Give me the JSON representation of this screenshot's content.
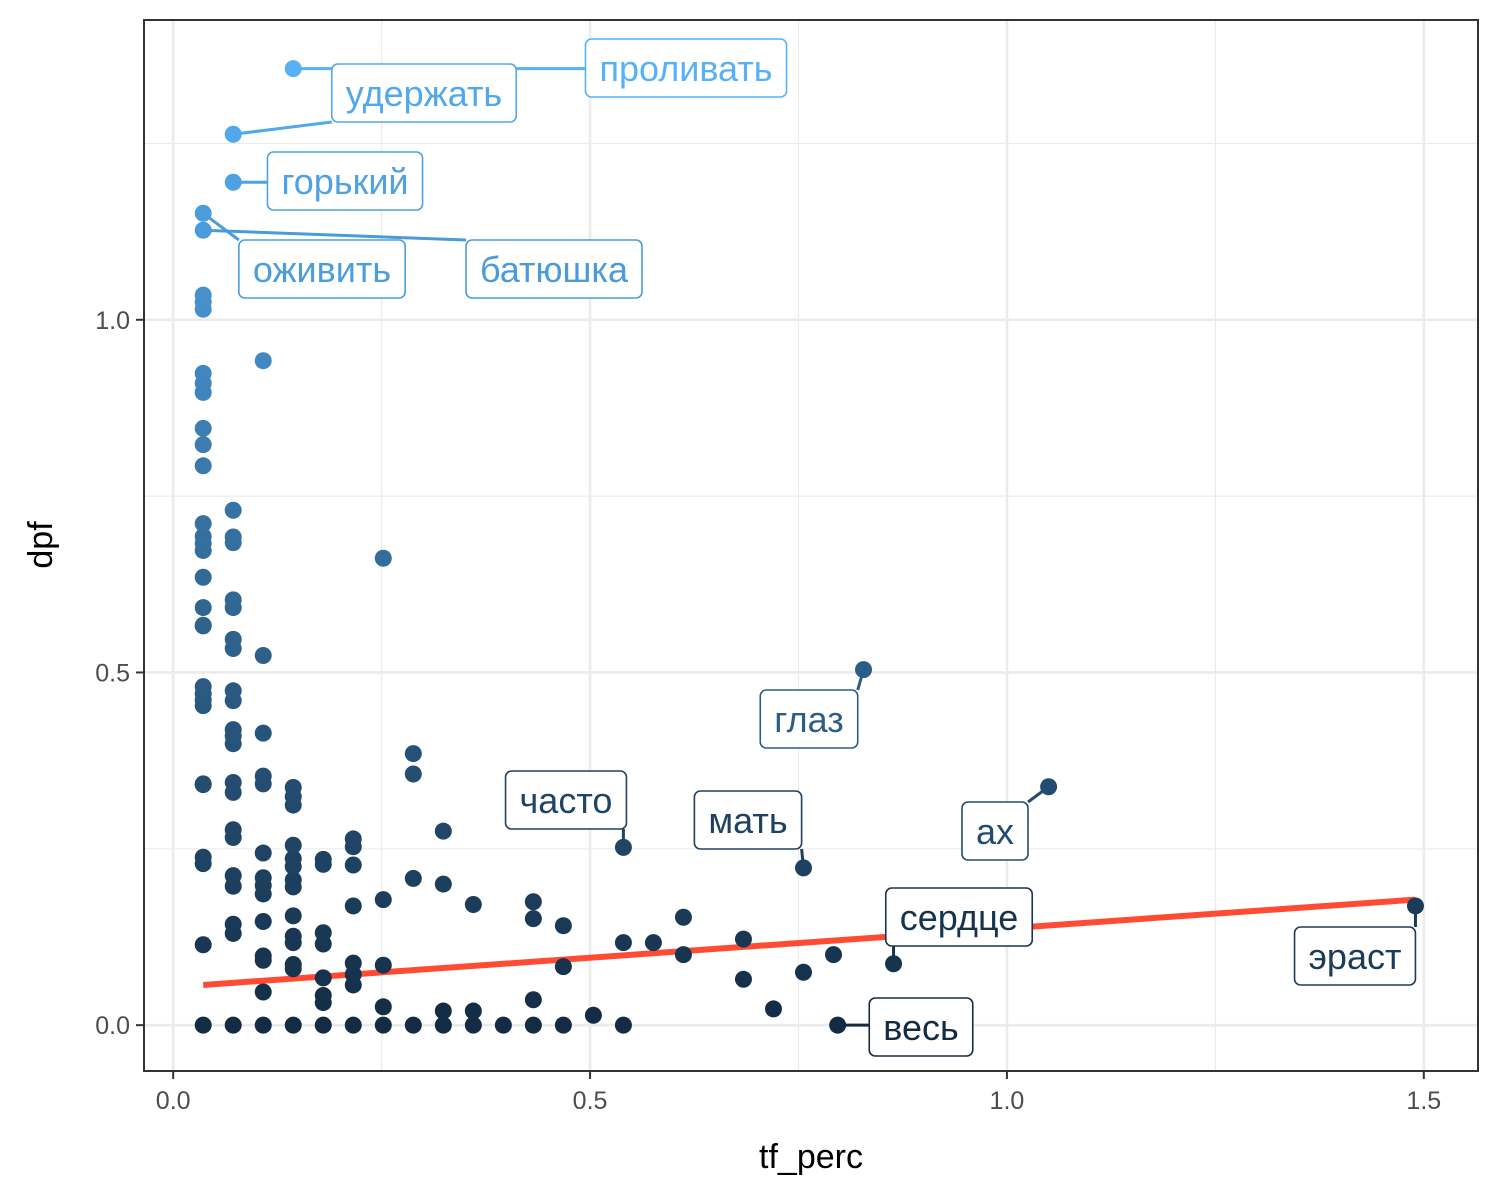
{
  "chart_data": {
    "type": "scatter",
    "xlabel": "tf_perc",
    "ylabel": "dpf",
    "xlim": [
      -0.035,
      1.565
    ],
    "ylim": [
      -0.065,
      1.425
    ],
    "x_ticks": [
      0.0,
      0.5,
      1.0,
      1.5
    ],
    "x_tick_labels": [
      "0.0",
      "0.5",
      "1.0",
      "1.5"
    ],
    "y_ticks": [
      0.0,
      0.5,
      1.0
    ],
    "y_tick_labels": [
      "0.0",
      "0.5",
      "1.0"
    ],
    "grid": true,
    "legend": "none",
    "color_low": "#132B43",
    "color_high": "#56B1F7",
    "trend_color": "#FF4B33",
    "trend_line": {
      "x": [
        0.036,
        1.49
      ],
      "y": [
        0.057,
        0.178
      ]
    },
    "points": [
      {
        "x": 0.036,
        "y": 0.0
      },
      {
        "x": 0.072,
        "y": 0.0
      },
      {
        "x": 0.108,
        "y": 0.0
      },
      {
        "x": 0.144,
        "y": 0.0
      },
      {
        "x": 0.18,
        "y": 0.0
      },
      {
        "x": 0.216,
        "y": 0.0
      },
      {
        "x": 0.252,
        "y": 0.0
      },
      {
        "x": 0.288,
        "y": 0.0
      },
      {
        "x": 0.324,
        "y": 0.0
      },
      {
        "x": 0.36,
        "y": 0.0
      },
      {
        "x": 0.396,
        "y": 0.0
      },
      {
        "x": 0.432,
        "y": 0.0
      },
      {
        "x": 0.468,
        "y": 0.0
      },
      {
        "x": 0.54,
        "y": 0.0
      },
      {
        "x": 0.797,
        "y": 0.0
      },
      {
        "x": 0.036,
        "y": 0.114
      },
      {
        "x": 0.036,
        "y": 0.229
      },
      {
        "x": 0.036,
        "y": 0.238
      },
      {
        "x": 0.036,
        "y": 0.341
      },
      {
        "x": 0.036,
        "y": 0.342
      },
      {
        "x": 0.036,
        "y": 0.453
      },
      {
        "x": 0.036,
        "y": 0.461
      },
      {
        "x": 0.036,
        "y": 0.47
      },
      {
        "x": 0.036,
        "y": 0.48
      },
      {
        "x": 0.036,
        "y": 0.566
      },
      {
        "x": 0.036,
        "y": 0.567
      },
      {
        "x": 0.036,
        "y": 0.592
      },
      {
        "x": 0.036,
        "y": 0.635
      },
      {
        "x": 0.036,
        "y": 0.673
      },
      {
        "x": 0.036,
        "y": 0.683
      },
      {
        "x": 0.036,
        "y": 0.693
      },
      {
        "x": 0.036,
        "y": 0.711
      },
      {
        "x": 0.036,
        "y": 0.793
      },
      {
        "x": 0.036,
        "y": 0.823
      },
      {
        "x": 0.036,
        "y": 0.846
      },
      {
        "x": 0.036,
        "y": 0.897
      },
      {
        "x": 0.036,
        "y": 0.91
      },
      {
        "x": 0.036,
        "y": 0.924
      },
      {
        "x": 0.036,
        "y": 1.015
      },
      {
        "x": 0.036,
        "y": 1.025
      },
      {
        "x": 0.036,
        "y": 1.035
      },
      {
        "x": 0.036,
        "y": 1.127
      },
      {
        "x": 0.036,
        "y": 1.151
      },
      {
        "x": 0.072,
        "y": 0.13
      },
      {
        "x": 0.072,
        "y": 0.143
      },
      {
        "x": 0.072,
        "y": 0.197
      },
      {
        "x": 0.072,
        "y": 0.212
      },
      {
        "x": 0.072,
        "y": 0.266
      },
      {
        "x": 0.072,
        "y": 0.277
      },
      {
        "x": 0.072,
        "y": 0.33
      },
      {
        "x": 0.072,
        "y": 0.344
      },
      {
        "x": 0.072,
        "y": 0.399
      },
      {
        "x": 0.072,
        "y": 0.41
      },
      {
        "x": 0.072,
        "y": 0.419
      },
      {
        "x": 0.072,
        "y": 0.46
      },
      {
        "x": 0.072,
        "y": 0.474
      },
      {
        "x": 0.072,
        "y": 0.534
      },
      {
        "x": 0.072,
        "y": 0.547
      },
      {
        "x": 0.072,
        "y": 0.592
      },
      {
        "x": 0.072,
        "y": 0.603
      },
      {
        "x": 0.072,
        "y": 0.684
      },
      {
        "x": 0.072,
        "y": 0.692
      },
      {
        "x": 0.072,
        "y": 0.73
      },
      {
        "x": 0.072,
        "y": 1.195
      },
      {
        "x": 0.072,
        "y": 1.263
      },
      {
        "x": 0.108,
        "y": 0.047
      },
      {
        "x": 0.108,
        "y": 0.092
      },
      {
        "x": 0.108,
        "y": 0.098
      },
      {
        "x": 0.108,
        "y": 0.147
      },
      {
        "x": 0.108,
        "y": 0.186
      },
      {
        "x": 0.108,
        "y": 0.198
      },
      {
        "x": 0.108,
        "y": 0.209
      },
      {
        "x": 0.108,
        "y": 0.244
      },
      {
        "x": 0.108,
        "y": 0.342
      },
      {
        "x": 0.108,
        "y": 0.353
      },
      {
        "x": 0.108,
        "y": 0.414
      },
      {
        "x": 0.108,
        "y": 0.524
      },
      {
        "x": 0.108,
        "y": 0.942
      },
      {
        "x": 0.144,
        "y": 0.08
      },
      {
        "x": 0.144,
        "y": 0.086
      },
      {
        "x": 0.144,
        "y": 0.117
      },
      {
        "x": 0.144,
        "y": 0.126
      },
      {
        "x": 0.144,
        "y": 0.155
      },
      {
        "x": 0.144,
        "y": 0.196
      },
      {
        "x": 0.144,
        "y": 0.206
      },
      {
        "x": 0.144,
        "y": 0.225
      },
      {
        "x": 0.144,
        "y": 0.236
      },
      {
        "x": 0.144,
        "y": 0.255
      },
      {
        "x": 0.144,
        "y": 0.312
      },
      {
        "x": 0.144,
        "y": 0.324
      },
      {
        "x": 0.144,
        "y": 0.337
      },
      {
        "x": 0.144,
        "y": 1.356
      },
      {
        "x": 0.18,
        "y": 0.032
      },
      {
        "x": 0.18,
        "y": 0.042
      },
      {
        "x": 0.18,
        "y": 0.067
      },
      {
        "x": 0.18,
        "y": 0.115
      },
      {
        "x": 0.18,
        "y": 0.131
      },
      {
        "x": 0.18,
        "y": 0.228
      },
      {
        "x": 0.18,
        "y": 0.235
      },
      {
        "x": 0.216,
        "y": 0.057
      },
      {
        "x": 0.216,
        "y": 0.072
      },
      {
        "x": 0.216,
        "y": 0.088
      },
      {
        "x": 0.216,
        "y": 0.169
      },
      {
        "x": 0.216,
        "y": 0.227
      },
      {
        "x": 0.216,
        "y": 0.253
      },
      {
        "x": 0.216,
        "y": 0.264
      },
      {
        "x": 0.252,
        "y": 0.026
      },
      {
        "x": 0.252,
        "y": 0.085
      },
      {
        "x": 0.252,
        "y": 0.178
      },
      {
        "x": 0.252,
        "y": 0.662
      },
      {
        "x": 0.288,
        "y": 0.208
      },
      {
        "x": 0.288,
        "y": 0.356
      },
      {
        "x": 0.288,
        "y": 0.385
      },
      {
        "x": 0.324,
        "y": 0.02
      },
      {
        "x": 0.324,
        "y": 0.2
      },
      {
        "x": 0.324,
        "y": 0.275
      },
      {
        "x": 0.36,
        "y": 0.02
      },
      {
        "x": 0.36,
        "y": 0.171
      },
      {
        "x": 0.432,
        "y": 0.036
      },
      {
        "x": 0.432,
        "y": 0.151
      },
      {
        "x": 0.432,
        "y": 0.175
      },
      {
        "x": 0.468,
        "y": 0.083
      },
      {
        "x": 0.468,
        "y": 0.141
      },
      {
        "x": 0.504,
        "y": 0.014
      },
      {
        "x": 0.54,
        "y": 0.117
      },
      {
        "x": 0.54,
        "y": 0.252
      },
      {
        "x": 0.576,
        "y": 0.117
      },
      {
        "x": 0.612,
        "y": 0.1
      },
      {
        "x": 0.612,
        "y": 0.153
      },
      {
        "x": 0.684,
        "y": 0.065
      },
      {
        "x": 0.684,
        "y": 0.122
      },
      {
        "x": 0.72,
        "y": 0.023
      },
      {
        "x": 0.756,
        "y": 0.075
      },
      {
        "x": 0.756,
        "y": 0.223
      },
      {
        "x": 0.792,
        "y": 0.1
      },
      {
        "x": 0.828,
        "y": 0.504
      },
      {
        "x": 0.864,
        "y": 0.087
      },
      {
        "x": 1.05,
        "y": 0.338
      },
      {
        "x": 1.49,
        "y": 0.169
      }
    ],
    "labels": [
      {
        "text": "проливать",
        "x": 0.144,
        "y": 1.356
      },
      {
        "text": "удержать",
        "x": 0.072,
        "y": 1.263
      },
      {
        "text": "горький",
        "x": 0.072,
        "y": 1.195
      },
      {
        "text": "оживить",
        "x": 0.036,
        "y": 1.151
      },
      {
        "text": "батюшка",
        "x": 0.036,
        "y": 1.127
      },
      {
        "text": "глаз",
        "x": 0.828,
        "y": 0.504
      },
      {
        "text": "часто",
        "x": 0.54,
        "y": 0.252
      },
      {
        "text": "мать",
        "x": 0.756,
        "y": 0.223
      },
      {
        "text": "ах",
        "x": 1.05,
        "y": 0.338
      },
      {
        "text": "сердце",
        "x": 0.864,
        "y": 0.087
      },
      {
        "text": "эраст",
        "x": 1.49,
        "y": 0.169
      },
      {
        "text": "весь",
        "x": 0.797,
        "y": 0.0
      }
    ]
  }
}
